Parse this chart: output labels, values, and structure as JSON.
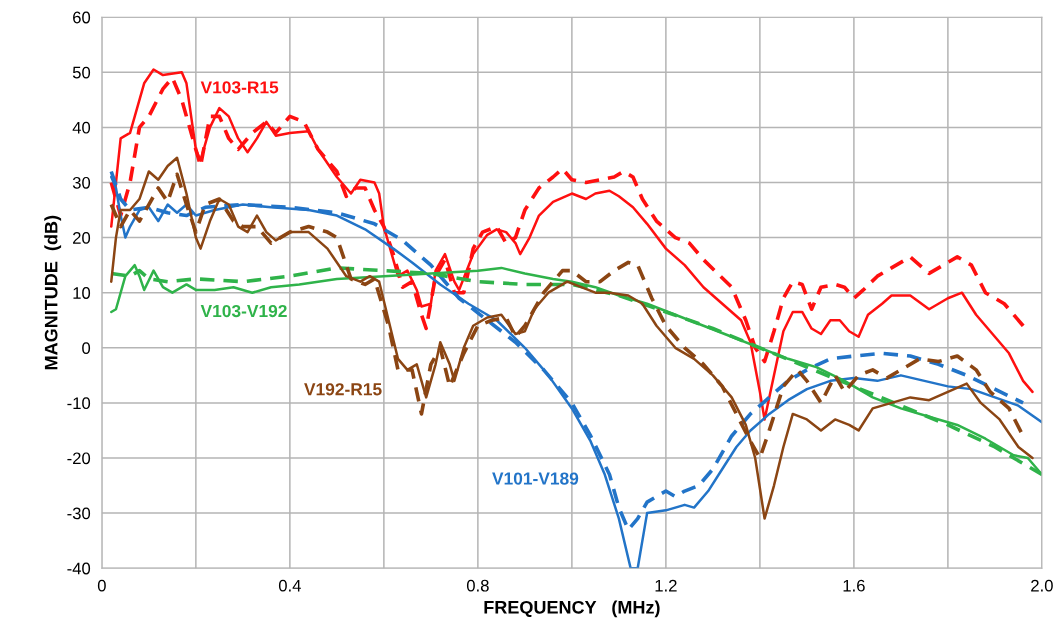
{
  "chart_data": {
    "type": "line",
    "xlabel": "FREQUENCY   (MHz)",
    "ylabel": "MAGNITUDE  (dB)",
    "xlim": [
      0,
      2
    ],
    "ylim": [
      -40,
      60
    ],
    "xticks": [
      0,
      {
        "value": 0.2,
        "label": null
      },
      {
        "value": 0.4,
        "label": "0.4"
      },
      {
        "value": 0.6,
        "label": null
      },
      {
        "value": 0.8,
        "label": "0.8"
      },
      {
        "value": 1.0,
        "label": null
      },
      {
        "value": 1.2,
        "label": "1.2"
      },
      {
        "value": 1.4,
        "label": null
      },
      {
        "value": 1.6,
        "label": "1.6"
      },
      {
        "value": 1.8,
        "label": null
      },
      {
        "value": 2.0,
        "label": "2.0"
      }
    ],
    "yticks": [
      -40,
      -30,
      -20,
      -10,
      0,
      10,
      20,
      30,
      40,
      50,
      60
    ],
    "grid": true,
    "marker": "none",
    "series": [
      {
        "name": "V103-R15",
        "color": "#ff1010",
        "line_style": "solid",
        "x": [
          0.02,
          0.03,
          0.04,
          0.06,
          0.07,
          0.09,
          0.11,
          0.13,
          0.17,
          0.18,
          0.2,
          0.21,
          0.23,
          0.25,
          0.27,
          0.29,
          0.31,
          0.33,
          0.35,
          0.37,
          0.4,
          0.44,
          0.46,
          0.5,
          0.53,
          0.55,
          0.58,
          0.59,
          0.6,
          0.62,
          0.63,
          0.65,
          0.67,
          0.68,
          0.7,
          0.71,
          0.73,
          0.75,
          0.76,
          0.79,
          0.82,
          0.84,
          0.86,
          0.88,
          0.89,
          0.91,
          0.93,
          0.96,
          1.0,
          1.03,
          1.05,
          1.08,
          1.1,
          1.13,
          1.16,
          1.2,
          1.24,
          1.28,
          1.32,
          1.36,
          1.38,
          1.4,
          1.41,
          1.43,
          1.45,
          1.47,
          1.49,
          1.51,
          1.53,
          1.55,
          1.57,
          1.59,
          1.61,
          1.63,
          1.66,
          1.68,
          1.72,
          1.76,
          1.8,
          1.83,
          1.86,
          1.9,
          1.93,
          1.96,
          1.98
        ],
        "values": [
          22,
          30,
          38,
          39,
          42,
          48,
          50.5,
          49.5,
          50,
          48,
          36,
          34,
          40,
          43.5,
          42,
          38,
          35.5,
          38,
          41,
          38.5,
          39,
          39.3,
          36,
          31,
          28,
          30.5,
          30,
          28,
          22,
          16,
          13,
          14,
          10.5,
          7.5,
          8,
          14,
          17,
          12,
          10.5,
          17,
          20.5,
          21.5,
          21,
          19,
          17,
          20,
          24,
          26.5,
          28,
          27,
          28,
          28.5,
          27.5,
          25.5,
          22.5,
          18,
          15,
          11,
          8,
          5,
          1,
          -8,
          -13,
          -5,
          3,
          6.5,
          6.5,
          3.5,
          2.5,
          5,
          5,
          3,
          2,
          6,
          8,
          9.5,
          9.5,
          7,
          9,
          10,
          6,
          2,
          -1,
          -6,
          -8
        ]
      },
      {
        "color": "#ff1010",
        "line_style": "dashed",
        "x": [
          0.02,
          0.04,
          0.06,
          0.08,
          0.1,
          0.13,
          0.15,
          0.17,
          0.19,
          0.21,
          0.23,
          0.25,
          0.27,
          0.29,
          0.32,
          0.35,
          0.37,
          0.4,
          0.43,
          0.46,
          0.5,
          0.52,
          0.54,
          0.56,
          0.58,
          0.6,
          0.62,
          0.64,
          0.66,
          0.68,
          0.69,
          0.71,
          0.73,
          0.75,
          0.77,
          0.79,
          0.81,
          0.84,
          0.86,
          0.88,
          0.9,
          0.93,
          0.96,
          0.98,
          1.0,
          1.03,
          1.06,
          1.09,
          1.11,
          1.13,
          1.15,
          1.18,
          1.22,
          1.25,
          1.28,
          1.31,
          1.34,
          1.37,
          1.39,
          1.41,
          1.43,
          1.45,
          1.47,
          1.49,
          1.51,
          1.53,
          1.56,
          1.58,
          1.6,
          1.62,
          1.65,
          1.68,
          1.72,
          1.76,
          1.79,
          1.82,
          1.85,
          1.88,
          1.92,
          1.96,
          1.97
        ],
        "values": [
          30,
          24,
          30,
          40,
          42,
          47,
          49,
          45,
          39,
          33,
          42,
          42,
          38,
          36,
          39,
          41,
          39,
          42,
          41,
          36,
          32,
          27.5,
          29,
          29,
          25,
          22,
          17,
          11,
          12,
          6,
          3.5,
          13,
          16,
          10,
          10,
          18,
          21,
          22,
          19,
          20,
          25,
          29,
          31,
          32.5,
          30.5,
          30,
          30.5,
          31,
          32,
          31,
          27,
          23,
          20,
          19,
          16,
          13.5,
          11,
          5,
          0,
          -2.5,
          3,
          9,
          12,
          11.5,
          7,
          11,
          11.5,
          11,
          9,
          10.5,
          13,
          14.5,
          16.5,
          13.5,
          15,
          16.5,
          15,
          10,
          8,
          4,
          3
        ]
      },
      {
        "name": "V101-V189",
        "color": "#2274c8",
        "line_style": "solid",
        "x": [
          0.02,
          0.03,
          0.04,
          0.05,
          0.06,
          0.08,
          0.1,
          0.12,
          0.14,
          0.16,
          0.18,
          0.2,
          0.24,
          0.3,
          0.36,
          0.44,
          0.5,
          0.56,
          0.62,
          0.66,
          0.72,
          0.78,
          0.84,
          0.9,
          0.95,
          1.0,
          1.04,
          1.07,
          1.1,
          1.125,
          1.14,
          1.16,
          1.2,
          1.24,
          1.26,
          1.29,
          1.32,
          1.35,
          1.38,
          1.42,
          1.46,
          1.5,
          1.55,
          1.6,
          1.65,
          1.7,
          1.75,
          1.8,
          1.85,
          1.9,
          1.95,
          2.0
        ],
        "values": [
          31,
          29,
          24,
          20,
          22,
          25,
          25.5,
          23,
          26,
          24.5,
          26,
          24,
          25,
          26,
          25.5,
          25,
          24,
          21.5,
          18,
          15.5,
          11.5,
          8,
          5,
          0,
          -5,
          -11,
          -17,
          -23,
          -31,
          -40,
          -40,
          -30,
          -29.5,
          -28.5,
          -29,
          -26,
          -22,
          -18,
          -15,
          -12,
          -9.5,
          -7.5,
          -6,
          -5.5,
          -6,
          -5,
          -6,
          -7,
          -7.5,
          -9,
          -10.5,
          -13.5
        ]
      },
      {
        "color": "#2274c8",
        "line_style": "dashed",
        "x": [
          0.02,
          0.04,
          0.06,
          0.1,
          0.14,
          0.18,
          0.22,
          0.3,
          0.4,
          0.5,
          0.58,
          0.64,
          0.7,
          0.76,
          0.82,
          0.88,
          0.94,
          1.0,
          1.04,
          1.08,
          1.1,
          1.12,
          1.14,
          1.16,
          1.2,
          1.22,
          1.24,
          1.27,
          1.3,
          1.34,
          1.38,
          1.42,
          1.46,
          1.5,
          1.55,
          1.6,
          1.66,
          1.72,
          1.78,
          1.84,
          1.9,
          1.96
        ],
        "values": [
          32,
          27,
          25,
          25.5,
          24.5,
          24,
          25.5,
          26,
          25.5,
          24.5,
          22.5,
          19.5,
          15,
          9,
          5,
          1,
          -4,
          -10,
          -16,
          -23,
          -29,
          -33,
          -31,
          -28,
          -26,
          -27,
          -26,
          -25,
          -22,
          -16,
          -12,
          -9,
          -6,
          -4,
          -2,
          -1.5,
          -1,
          -1.5,
          -3,
          -5,
          -7.5,
          -10
        ]
      },
      {
        "name": "V103-V192",
        "color": "#2fb34a",
        "line_style": "solid",
        "x": [
          0.02,
          0.03,
          0.05,
          0.07,
          0.08,
          0.09,
          0.11,
          0.13,
          0.15,
          0.18,
          0.2,
          0.24,
          0.28,
          0.32,
          0.36,
          0.42,
          0.5,
          0.6,
          0.7,
          0.8,
          0.85,
          0.9,
          0.96,
          1.0,
          1.05,
          1.1,
          1.16,
          1.22,
          1.28,
          1.34,
          1.4,
          1.46,
          1.52,
          1.58,
          1.64,
          1.7,
          1.76,
          1.82,
          1.88,
          1.94,
          1.97,
          2.0
        ],
        "values": [
          6.5,
          7,
          13,
          15,
          13,
          10.5,
          14,
          11,
          10,
          11.5,
          10.5,
          10.5,
          11,
          10,
          11,
          11.5,
          12.5,
          13,
          13.5,
          14,
          14.5,
          13.5,
          12.5,
          12,
          11,
          9.5,
          8,
          6,
          4,
          2,
          0,
          -2,
          -3.5,
          -6,
          -9,
          -11,
          -12.5,
          -14,
          -16.5,
          -19.5,
          -20,
          -23
        ]
      },
      {
        "color": "#2fb34a",
        "line_style": "dashed",
        "x": [
          0.02,
          0.06,
          0.08,
          0.1,
          0.14,
          0.2,
          0.3,
          0.4,
          0.5,
          0.6,
          0.7,
          0.8,
          0.9,
          1.0,
          1.1,
          1.2,
          1.3,
          1.4,
          1.5,
          1.6,
          1.7,
          1.8,
          1.9,
          2.0
        ],
        "values": [
          13.5,
          13,
          14,
          12.5,
          12,
          12.5,
          12,
          13,
          14.5,
          14,
          13.5,
          12,
          11.5,
          11.5,
          9.5,
          6.5,
          3.5,
          0,
          -3.5,
          -7,
          -10.5,
          -14,
          -18,
          -23
        ]
      },
      {
        "name": "V192-R15",
        "color": "#8b4513",
        "line_style": "solid",
        "x": [
          0.02,
          0.03,
          0.04,
          0.06,
          0.08,
          0.1,
          0.12,
          0.14,
          0.16,
          0.18,
          0.2,
          0.21,
          0.23,
          0.25,
          0.27,
          0.29,
          0.31,
          0.33,
          0.35,
          0.37,
          0.4,
          0.44,
          0.48,
          0.52,
          0.55,
          0.57,
          0.59,
          0.61,
          0.63,
          0.65,
          0.67,
          0.69,
          0.71,
          0.72,
          0.74,
          0.75,
          0.77,
          0.79,
          0.82,
          0.85,
          0.88,
          0.9,
          0.92,
          0.95,
          0.99,
          1.02,
          1.05,
          1.08,
          1.12,
          1.15,
          1.18,
          1.22,
          1.26,
          1.3,
          1.34,
          1.37,
          1.39,
          1.41,
          1.43,
          1.45,
          1.47,
          1.5,
          1.53,
          1.56,
          1.59,
          1.61,
          1.64,
          1.68,
          1.72,
          1.76,
          1.8,
          1.84,
          1.87,
          1.91,
          1.95,
          1.98
        ],
        "values": [
          12,
          20,
          25,
          25,
          27,
          32,
          30.5,
          33,
          34.5,
          28,
          20,
          18,
          23,
          27,
          26,
          22,
          21,
          24,
          21,
          19.5,
          21,
          21,
          18,
          13,
          12,
          13,
          12,
          5,
          -2,
          -4,
          -3,
          -9,
          -3,
          1,
          -3,
          -6,
          0,
          4,
          5.5,
          6,
          2.5,
          3,
          7,
          10,
          12,
          11,
          10,
          10,
          9.5,
          8,
          4,
          0,
          -2,
          -5,
          -9,
          -14,
          -20,
          -31,
          -25,
          -18,
          -12,
          -13,
          -15,
          -13,
          -14,
          -15,
          -11,
          -10,
          -9,
          -9.5,
          -8,
          -6.5,
          -10,
          -13,
          -18,
          -20
        ]
      },
      {
        "color": "#8b4513",
        "line_style": "dashed",
        "x": [
          0.02,
          0.04,
          0.06,
          0.08,
          0.1,
          0.12,
          0.14,
          0.16,
          0.18,
          0.2,
          0.22,
          0.25,
          0.28,
          0.3,
          0.33,
          0.36,
          0.4,
          0.44,
          0.48,
          0.5,
          0.53,
          0.56,
          0.58,
          0.61,
          0.63,
          0.66,
          0.68,
          0.7,
          0.72,
          0.74,
          0.77,
          0.8,
          0.83,
          0.86,
          0.88,
          0.9,
          0.94,
          0.98,
          1.0,
          1.03,
          1.06,
          1.09,
          1.12,
          1.14,
          1.17,
          1.2,
          1.24,
          1.28,
          1.32,
          1.35,
          1.38,
          1.4,
          1.42,
          1.45,
          1.48,
          1.5,
          1.53,
          1.56,
          1.58,
          1.61,
          1.64,
          1.67,
          1.7,
          1.74,
          1.78,
          1.82,
          1.86,
          1.89,
          1.93,
          1.96
        ],
        "values": [
          26,
          22,
          25,
          23,
          26,
          29,
          26.5,
          31.5,
          26,
          21,
          26,
          27,
          23,
          22,
          22,
          19,
          21,
          22,
          21,
          20,
          12.5,
          11.5,
          12.5,
          4,
          -4,
          -4,
          -12,
          -3,
          0,
          -7,
          -1,
          4,
          5,
          5.5,
          2,
          4,
          10,
          14,
          14,
          12,
          12,
          14,
          15.5,
          15,
          9,
          4,
          0,
          -3,
          -7,
          -12,
          -17,
          -20,
          -15,
          -7,
          -4,
          -6,
          -10,
          -5,
          -8,
          -5,
          -4,
          -5.5,
          -4,
          -2,
          -2.5,
          -1.5,
          -4,
          -8,
          -11,
          -16
        ]
      }
    ]
  }
}
